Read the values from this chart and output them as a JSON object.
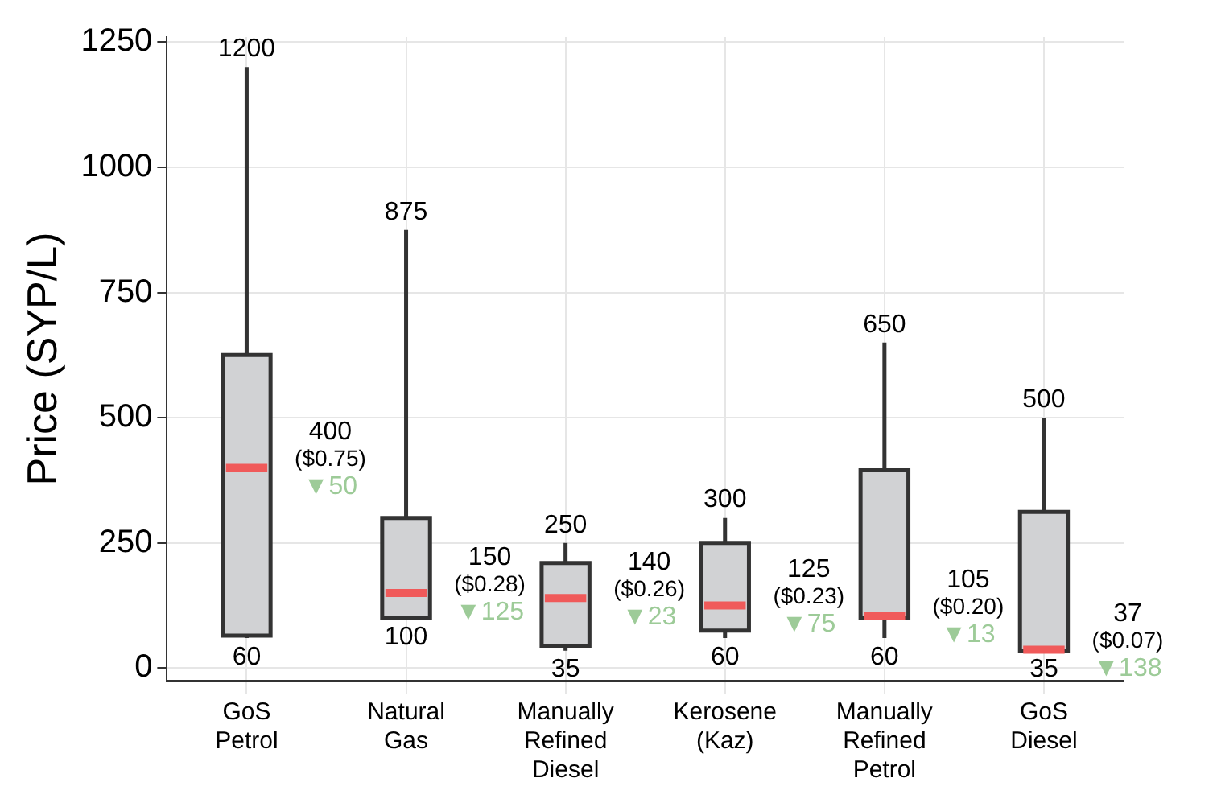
{
  "chart_data": {
    "type": "box",
    "ylabel": "Price (SYP/L)",
    "categories": [
      "GoS Petrol",
      "Natural Gas",
      "Manually Refined Diesel",
      "Kerosene (Kaz)",
      "Manually Refined Petrol",
      "GoS Diesel"
    ],
    "series": [
      {
        "color": "#d1d2d4",
        "boxes": [
          {
            "low": 60,
            "q1": 65,
            "median": 400,
            "q3": 625,
            "high": 1200
          },
          {
            "low": 100,
            "q1": 100,
            "median": 150,
            "q3": 300,
            "high": 875
          },
          {
            "low": 35,
            "q1": 45,
            "median": 140,
            "q3": 210,
            "high": 250
          },
          {
            "low": 60,
            "q1": 75,
            "median": 125,
            "q3": 250,
            "high": 300
          },
          {
            "low": 60,
            "q1": 100,
            "median": 105,
            "q3": 395,
            "high": 650
          },
          {
            "low": 35,
            "q1": 35,
            "median": 37,
            "q3": 312,
            "high": 500
          }
        ]
      }
    ],
    "ylim": [
      -25,
      1260
    ],
    "yticks": [
      0,
      250,
      500,
      750,
      1000,
      1250
    ],
    "grid": true,
    "annotations": [
      {
        "text": "1200",
        "x": "GoS Petrol",
        "y": 1200
      },
      {
        "text": "60",
        "x": "GoS Petrol",
        "y": 60
      },
      {
        "text": "400\n($0.75)\n▼50",
        "x": "GoS Petrol",
        "y": 400
      },
      {
        "text": "875",
        "x": "Natural Gas",
        "y": 875
      },
      {
        "text": "100",
        "x": "Natural Gas",
        "y": 100
      },
      {
        "text": "150\n($0.28)\n▼125",
        "x": "Natural Gas",
        "y": 150
      },
      {
        "text": "250",
        "x": "Manually Refined Diesel",
        "y": 250
      },
      {
        "text": "35",
        "x": "Manually Refined Diesel",
        "y": 35
      },
      {
        "text": "140\n($0.26)\n▼23",
        "x": "Manually Refined Diesel",
        "y": 140
      },
      {
        "text": "300",
        "x": "Kerosene (Kaz)",
        "y": 300
      },
      {
        "text": "60",
        "x": "Kerosene (Kaz)",
        "y": 60
      },
      {
        "text": "125\n($0.23)\n▼75",
        "x": "Kerosene (Kaz)",
        "y": 125
      },
      {
        "text": "650",
        "x": "Manually Refined Petrol",
        "y": 650
      },
      {
        "text": "60",
        "x": "Manually Refined Petrol",
        "y": 60
      },
      {
        "text": "105\n($0.20)\n▼13",
        "x": "Manually Refined Petrol",
        "y": 105
      },
      {
        "text": "500",
        "x": "GoS Diesel",
        "y": 500
      },
      {
        "text": "35",
        "x": "GoS Diesel",
        "y": 35
      },
      {
        "text": "37\n($0.07)\n▼138",
        "x": "GoS Diesel",
        "y": 37
      }
    ]
  }
}
